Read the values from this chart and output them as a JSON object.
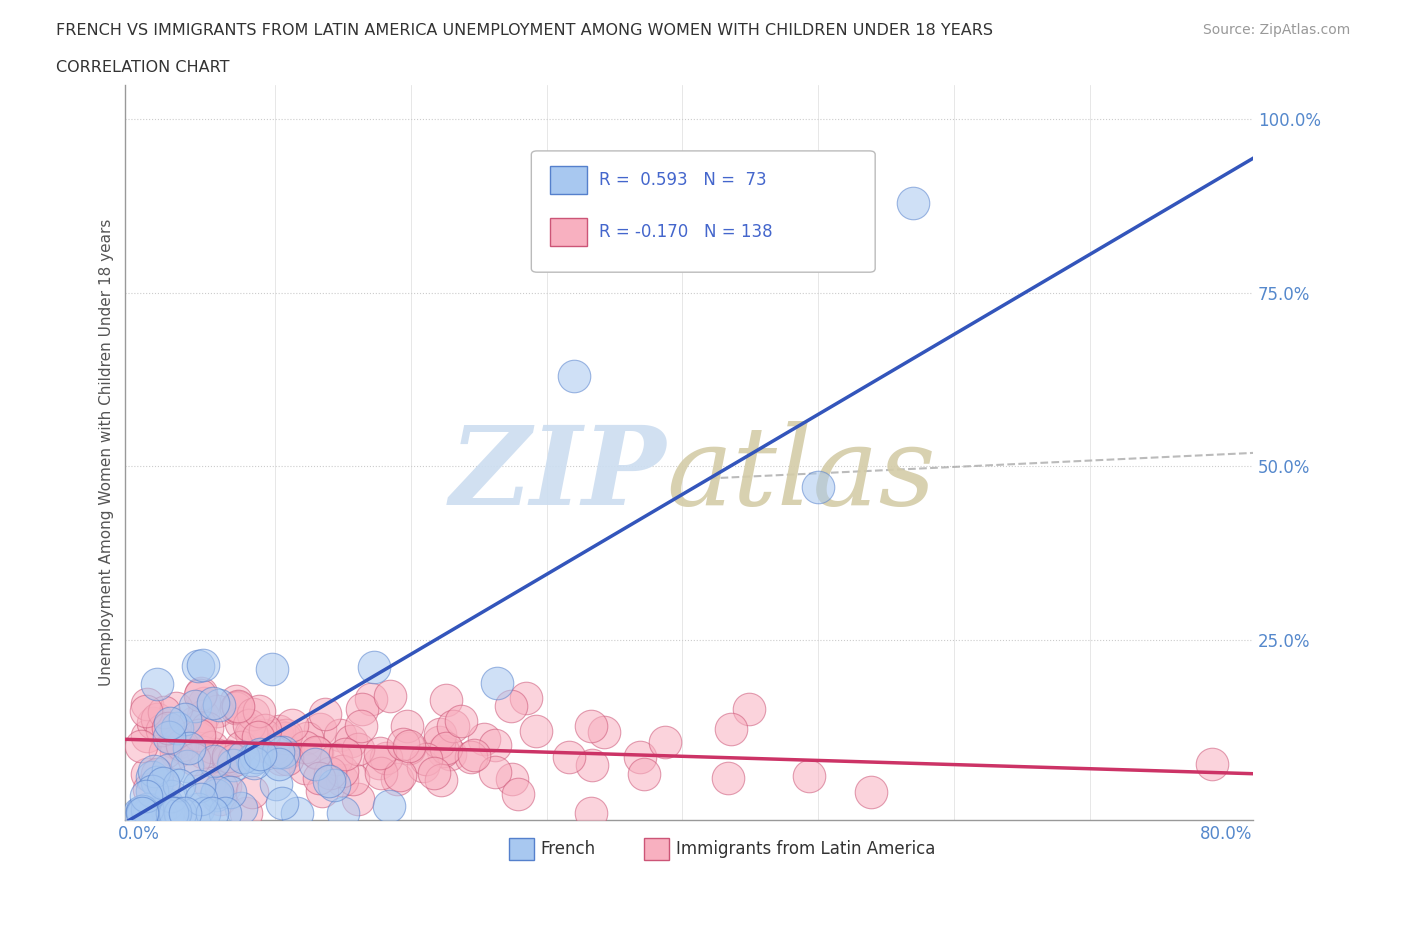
{
  "title_line1": "FRENCH VS IMMIGRANTS FROM LATIN AMERICA UNEMPLOYMENT AMONG WOMEN WITH CHILDREN UNDER 18 YEARS",
  "title_line2": "CORRELATION CHART",
  "source": "Source: ZipAtlas.com",
  "ylabel": "Unemployment Among Women with Children Under 18 years",
  "french_R": 0.593,
  "french_N": 73,
  "latin_R": -0.17,
  "latin_N": 138,
  "french_color": "#a8c8f0",
  "french_edge_color": "#5580cc",
  "french_line_color": "#3355bb",
  "latin_color": "#f8b0c0",
  "latin_edge_color": "#cc5577",
  "latin_line_color": "#cc3366",
  "watermark_zip_color": "#ccddf0",
  "watermark_atlas_color": "#d4cca8",
  "background_color": "#ffffff",
  "title_color": "#333333",
  "legend_R_color": "#4466cc",
  "grid_color": "#cccccc",
  "tick_color": "#5588cc",
  "dash_line_color": "#aaaaaa"
}
